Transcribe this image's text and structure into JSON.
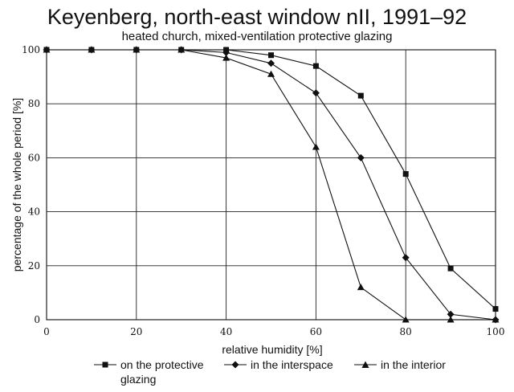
{
  "chart_data": {
    "type": "line",
    "title": "Keyenberg, north-east window nII, 1991–92",
    "subtitle": "heated church, mixed-ventilation protective glazing",
    "xlabel": "relative humidity [%]",
    "ylabel": "percentage of the whole period [%]",
    "xlim": [
      0,
      100
    ],
    "ylim": [
      0,
      100
    ],
    "xticks": [
      "0",
      "20",
      "40",
      "60",
      "80",
      "100"
    ],
    "yticks": [
      "0",
      "20",
      "40",
      "60",
      "80",
      "100"
    ],
    "grid": true,
    "legend_position": "bottom",
    "series": [
      {
        "name": "on the protective glazing",
        "marker": "square",
        "x": [
          0,
          10,
          20,
          30,
          40,
          50,
          60,
          70,
          80,
          90,
          100
        ],
        "y": [
          100,
          100,
          100,
          100,
          100,
          98,
          94,
          83,
          54,
          19,
          4
        ]
      },
      {
        "name": "in the interspace",
        "marker": "diamond",
        "x": [
          0,
          10,
          20,
          30,
          40,
          50,
          60,
          70,
          80,
          90,
          100
        ],
        "y": [
          100,
          100,
          100,
          100,
          99,
          95,
          84,
          60,
          23,
          2,
          0
        ]
      },
      {
        "name": "in the interior",
        "marker": "triangle",
        "x": [
          0,
          10,
          20,
          30,
          40,
          50,
          60,
          70,
          80,
          90,
          100
        ],
        "y": [
          100,
          100,
          100,
          100,
          97,
          91,
          64,
          12,
          0,
          0,
          0
        ]
      }
    ]
  },
  "legend": {
    "items": [
      {
        "line1": "on the protective",
        "line2": "glazing",
        "marker": "square"
      },
      {
        "line1": "in the interspace",
        "line2": "",
        "marker": "diamond"
      },
      {
        "line1": "in the interior",
        "line2": "",
        "marker": "triangle"
      }
    ]
  }
}
